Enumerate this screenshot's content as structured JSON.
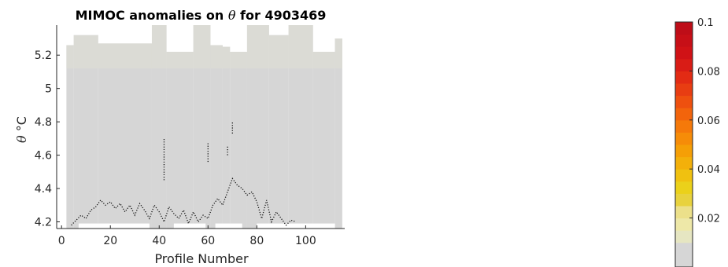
{
  "chart_data": {
    "type": "heatmap",
    "title_prefix": "MIMOC anomalies on",
    "title_symbol": "θ",
    "title_suffix": "for 4903469",
    "xlabel": "Profile Number",
    "ylabel_symbol": "θ",
    "ylabel_unit": "°C",
    "xlim": [
      -2,
      116
    ],
    "ylim": [
      4.16,
      5.38
    ],
    "xticks": [
      0,
      20,
      40,
      60,
      80,
      100
    ],
    "yticks": [
      4.2,
      4.4,
      4.6,
      4.8,
      5,
      5.2
    ],
    "ytick_labels": [
      "4.2",
      "4.4",
      "4.6",
      "4.8",
      "5",
      "5.2"
    ],
    "grid": false,
    "field_color": "#d6d6d6",
    "upper_band_color": "#dcdcd4",
    "column_tops": [
      {
        "x": [
          2,
          5
        ],
        "top": 5.26
      },
      {
        "x": [
          5,
          15
        ],
        "top": 5.32
      },
      {
        "x": [
          15,
          37
        ],
        "top": 5.27
      },
      {
        "x": [
          37,
          43
        ],
        "top": 5.38
      },
      {
        "x": [
          43,
          54
        ],
        "top": 5.22
      },
      {
        "x": [
          54,
          61
        ],
        "top": 5.38
      },
      {
        "x": [
          61,
          66
        ],
        "top": 5.26
      },
      {
        "x": [
          66,
          69
        ],
        "top": 5.25
      },
      {
        "x": [
          69,
          76
        ],
        "top": 5.22
      },
      {
        "x": [
          76,
          85
        ],
        "top": 5.38
      },
      {
        "x": [
          85,
          93
        ],
        "top": 5.32
      },
      {
        "x": [
          93,
          103
        ],
        "top": 5.38
      },
      {
        "x": [
          103,
          112
        ],
        "top": 5.22
      },
      {
        "x": [
          112,
          115
        ],
        "top": 5.3
      }
    ],
    "column_bottoms": [
      {
        "x": [
          0,
          7
        ],
        "bottom": 4.16
      },
      {
        "x": [
          7,
          36
        ],
        "bottom": 4.19
      },
      {
        "x": [
          36,
          46
        ],
        "bottom": 4.16
      },
      {
        "x": [
          46,
          59
        ],
        "bottom": 4.19
      },
      {
        "x": [
          59,
          63
        ],
        "bottom": 4.16
      },
      {
        "x": [
          63,
          74
        ],
        "bottom": 4.19
      },
      {
        "x": [
          74,
          80
        ],
        "bottom": 4.16
      },
      {
        "x": [
          80,
          112
        ],
        "bottom": 4.19
      },
      {
        "x": [
          112,
          115
        ],
        "bottom": 4.16
      }
    ],
    "mixed_layer_depth": {
      "x": [
        4,
        6,
        8,
        10,
        12,
        14,
        16,
        18,
        20,
        22,
        24,
        26,
        28,
        30,
        32,
        34,
        36,
        38,
        40,
        42,
        44,
        46,
        48,
        50,
        52,
        54,
        56,
        58,
        60,
        62,
        64,
        66,
        68,
        70,
        72,
        74,
        76,
        78,
        80,
        82,
        84,
        86,
        88,
        90,
        92,
        94,
        96
      ],
      "y": [
        4.18,
        4.21,
        4.24,
        4.22,
        4.27,
        4.29,
        4.33,
        4.3,
        4.32,
        4.28,
        4.31,
        4.26,
        4.3,
        4.24,
        4.31,
        4.27,
        4.22,
        4.3,
        4.26,
        4.2,
        4.29,
        4.25,
        4.22,
        4.27,
        4.19,
        4.26,
        4.2,
        4.24,
        4.22,
        4.3,
        4.34,
        4.3,
        4.38,
        4.46,
        4.42,
        4.4,
        4.36,
        4.38,
        4.32,
        4.22,
        4.33,
        4.2,
        4.26,
        4.22,
        4.18,
        4.21,
        4.2
      ]
    },
    "spike_markers": [
      {
        "x": 42,
        "y": [
          4.45,
          4.7
        ]
      },
      {
        "x": 60,
        "y": [
          4.56,
          4.68
        ]
      },
      {
        "x": 68,
        "y": [
          4.6,
          4.66
        ]
      },
      {
        "x": 70,
        "y": [
          4.73,
          4.8
        ]
      }
    ],
    "colorbar": {
      "range": [
        0,
        0.1
      ],
      "ticks": [
        0.02,
        0.04,
        0.06,
        0.08,
        0.1
      ],
      "tick_labels": [
        "0.02",
        "0.04",
        "0.06",
        "0.08",
        "0.1"
      ],
      "colors": [
        "#d6d6d6",
        "#d6d6d6",
        "#e6e6c2",
        "#eee8a8",
        "#ece08a",
        "#e8d23e",
        "#ebd11a",
        "#f0c110",
        "#f3b00a",
        "#f59f06",
        "#f68c08",
        "#f5790a",
        "#f2640c",
        "#ee500f",
        "#e83d12",
        "#e22b14",
        "#d91c16",
        "#d01216",
        "#c70f17",
        "#be0d18"
      ]
    }
  }
}
